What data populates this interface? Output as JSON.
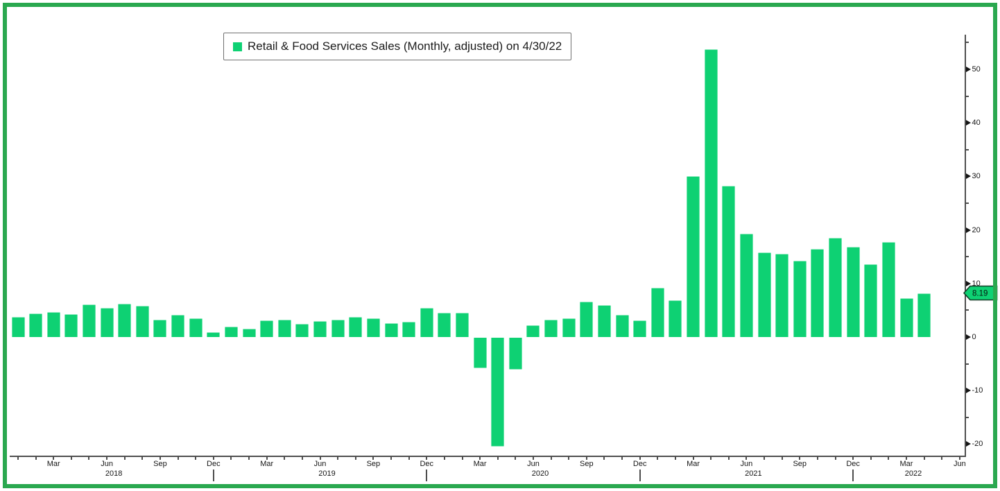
{
  "legend": {
    "label": "Retail & Food Services Sales (Monthly, adjusted) on 4/30/22",
    "marker_color": "#0ed173"
  },
  "last_value_badge": {
    "text": "8.19"
  },
  "chart_data": {
    "type": "bar",
    "title": "Retail & Food Services Sales (Monthly, adjusted) on 4/30/22",
    "legend_position": "top-left",
    "grid": false,
    "months": [
      "2018-01",
      "2018-02",
      "2018-03",
      "2018-04",
      "2018-05",
      "2018-06",
      "2018-07",
      "2018-08",
      "2018-09",
      "2018-10",
      "2018-11",
      "2018-12",
      "2019-01",
      "2019-02",
      "2019-03",
      "2019-04",
      "2019-05",
      "2019-06",
      "2019-07",
      "2019-08",
      "2019-09",
      "2019-10",
      "2019-11",
      "2019-12",
      "2020-01",
      "2020-02",
      "2020-03",
      "2020-04",
      "2020-05",
      "2020-06",
      "2020-07",
      "2020-08",
      "2020-09",
      "2020-10",
      "2020-11",
      "2020-12",
      "2021-01",
      "2021-02",
      "2021-03",
      "2021-04",
      "2021-05",
      "2021-06",
      "2021-07",
      "2021-08",
      "2021-09",
      "2021-10",
      "2021-11",
      "2021-12",
      "2022-01",
      "2022-02",
      "2022-03",
      "2022-04"
    ],
    "values": [
      3.8,
      4.4,
      4.6,
      4.3,
      6.1,
      5.4,
      6.2,
      5.8,
      3.3,
      4.2,
      3.5,
      0.9,
      2.0,
      1.6,
      3.1,
      3.2,
      2.4,
      3.0,
      3.3,
      3.7,
      3.5,
      2.6,
      2.9,
      5.5,
      4.5,
      4.5,
      -5.7,
      -20.3,
      -6.0,
      2.2,
      3.2,
      3.5,
      6.6,
      5.9,
      4.2,
      3.1,
      9.2,
      6.9,
      30.1,
      53.8,
      28.3,
      19.3,
      15.8,
      15.6,
      14.3,
      16.5,
      18.5,
      16.8,
      13.6,
      17.7,
      7.3,
      8.19
    ],
    "last_value": 8.19,
    "y_axis": {
      "side": "right",
      "range": [
        -22,
        56
      ],
      "major_ticks": [
        50,
        40,
        30,
        20,
        10,
        0,
        -10,
        -20
      ],
      "minor_ticks": [
        55,
        45,
        35,
        25,
        15,
        5,
        -5,
        -15
      ]
    },
    "x_axis": {
      "tick_count": 54,
      "month_tick_labels": [
        "Mar",
        "Jun",
        "Sep",
        "Dec"
      ],
      "year_labels": [
        {
          "text": "2018",
          "month_index": 5
        },
        {
          "text": "2019",
          "month_index": 17
        },
        {
          "text": "2020",
          "month_index": 29
        },
        {
          "text": "2021",
          "month_index": 41
        },
        {
          "text": "2022",
          "month_index": 50
        }
      ],
      "year_divider_month_indices": [
        11,
        23,
        35,
        47
      ]
    },
    "colors": {
      "bar": "#0ed173",
      "axis": "#4d4d4d",
      "frame_border": "#2aa84f",
      "badge_fill": "#0ed173",
      "badge_border": "#143c28"
    }
  }
}
